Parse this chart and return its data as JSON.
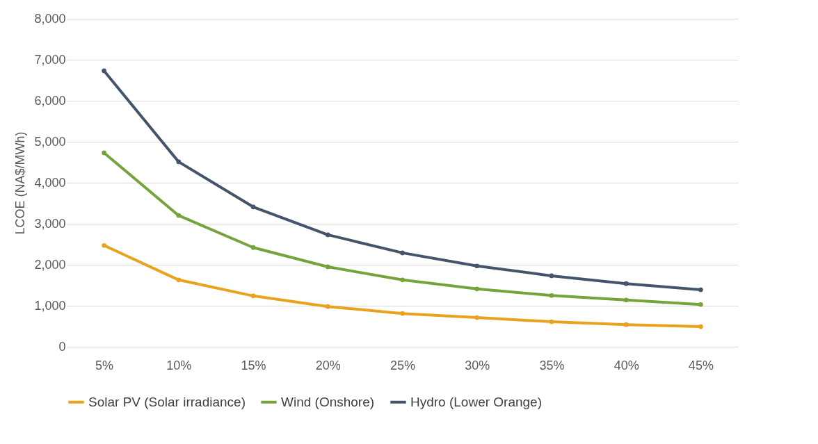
{
  "chart_data": {
    "type": "line",
    "ylabel": "LCOE (NA$/MWh)",
    "categories": [
      "5%",
      "10%",
      "15%",
      "20%",
      "25%",
      "30%",
      "35%",
      "40%",
      "45%"
    ],
    "ylim": [
      0,
      8000
    ],
    "yticks": [
      {
        "value": 0,
        "label": "0"
      },
      {
        "value": 1000,
        "label": "1,000"
      },
      {
        "value": 2000,
        "label": "2,000"
      },
      {
        "value": 3000,
        "label": "3,000"
      },
      {
        "value": 4000,
        "label": "4,000"
      },
      {
        "value": 5000,
        "label": "5,000"
      },
      {
        "value": 6000,
        "label": "6,000"
      },
      {
        "value": 7000,
        "label": "7,000"
      },
      {
        "value": 8000,
        "label": "8,000"
      }
    ],
    "grid": "y",
    "legend": "bottom",
    "marker": "circle",
    "series": [
      {
        "name": "Solar PV (Solar irradiance)",
        "color": "#e8a21e",
        "values": [
          2470,
          1630,
          1240,
          980,
          810,
          710,
          610,
          540,
          490
        ]
      },
      {
        "name": "Wind (Onshore)",
        "color": "#76a33c",
        "values": [
          4730,
          3200,
          2420,
          1950,
          1630,
          1410,
          1250,
          1140,
          1030
        ]
      },
      {
        "name": "Hydro (Lower Orange)",
        "color": "#44546a",
        "values": [
          6730,
          4510,
          3410,
          2730,
          2290,
          1970,
          1730,
          1540,
          1390
        ]
      }
    ]
  }
}
